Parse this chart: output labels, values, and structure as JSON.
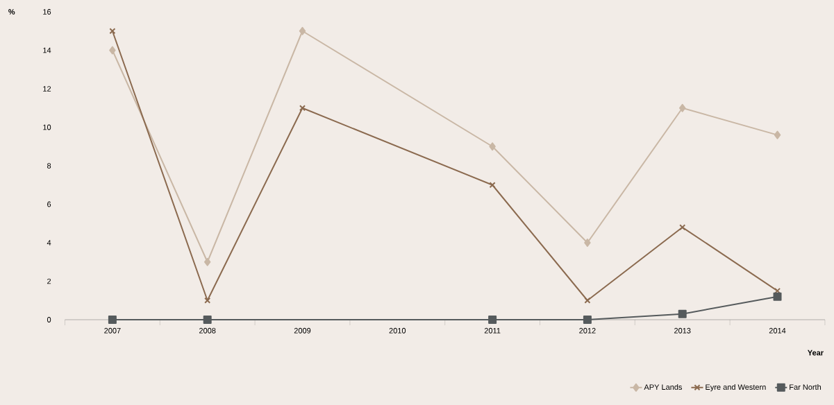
{
  "chart_data": {
    "type": "line",
    "ylabel": "%",
    "xlabel": "Year",
    "categories": [
      "2007",
      "2008",
      "2009",
      "2010",
      "2011",
      "2012",
      "2013",
      "2014"
    ],
    "series": [
      {
        "name": "APY Lands",
        "color": "#c9b7a5",
        "marker": "diamond",
        "values": [
          14,
          3,
          15,
          null,
          9,
          4,
          11,
          9.6
        ]
      },
      {
        "name": "Eyre and Western",
        "color": "#8b6a4f",
        "marker": "cross",
        "values": [
          15,
          1,
          11,
          null,
          7,
          1,
          4.8,
          1.5
        ]
      },
      {
        "name": "Far North",
        "color": "#555a5c",
        "marker": "square",
        "values": [
          0,
          0,
          null,
          null,
          0,
          0,
          0.3,
          1.2
        ]
      }
    ],
    "ylim": [
      0,
      16
    ],
    "yticks": [
      0,
      2,
      4,
      6,
      8,
      10,
      12,
      14,
      16
    ],
    "grid": false,
    "legend": "bottom right",
    "line_style": "solid"
  }
}
